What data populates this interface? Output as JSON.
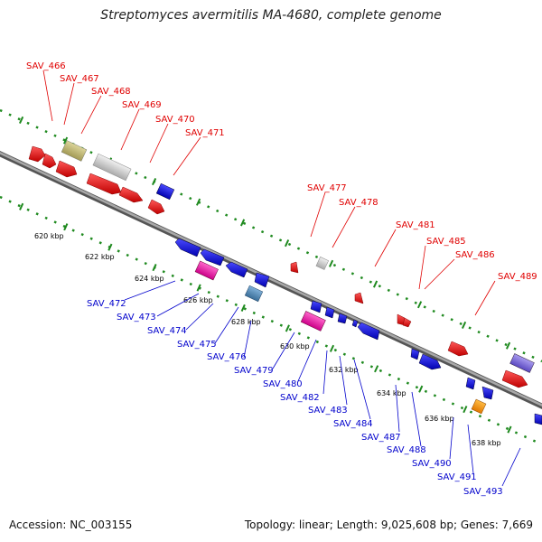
{
  "title": "Streptomyces avermitilis MA-4680, complete genome",
  "footer": {
    "accession": "Accession: NC_003155",
    "summary": "Topology: linear; Length: 9,025,608 bp; Genes: 7,669"
  },
  "colors": {
    "top_label": "#e00000",
    "bottom_label": "#0000cc",
    "track": "#1f8a1f",
    "backbone": "#888888"
  },
  "kbp_ticks": [
    "620 kbp",
    "622 kbp",
    "624 kbp",
    "626 kbp",
    "628 kbp",
    "630 kbp",
    "632 kbp",
    "634 kbp",
    "636 kbp",
    "638 kbp"
  ],
  "top_labels": [
    "SAV_466",
    "SAV_467",
    "SAV_468",
    "SAV_469",
    "SAV_470",
    "SAV_471",
    "SAV_477",
    "SAV_478",
    "SAV_481",
    "SAV_485",
    "SAV_486",
    "SAV_489"
  ],
  "bottom_labels": [
    "SAV_472",
    "SAV_473",
    "SAV_474",
    "SAV_475",
    "SAV_476",
    "SAV_479",
    "SAV_480",
    "SAV_482",
    "SAV_483",
    "SAV_484",
    "SAV_487",
    "SAV_488",
    "SAV_490",
    "SAV_491",
    "SAV_493"
  ]
}
